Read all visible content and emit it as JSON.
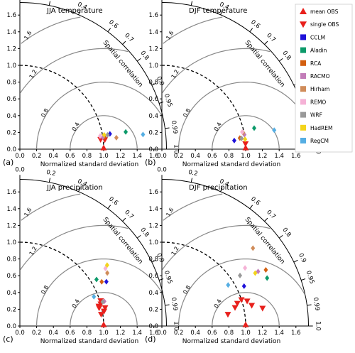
{
  "figure": {
    "x_axis_label": "Normalized standard deviation",
    "arc_label": "Spatial correlation",
    "panel_letters": [
      "(a)",
      "(b)",
      "(c)",
      "(d)"
    ]
  },
  "axes": {
    "radial_ticks": [
      "0.0",
      "0.2",
      "0.4",
      "0.6",
      "0.8",
      "1.0",
      "1.2",
      "1.4",
      "1.6"
    ],
    "correlation_ticks": [
      {
        "r": 0.0,
        "label": "0.0"
      },
      {
        "r": 0.2,
        "label": "0.2"
      },
      {
        "r": 0.4,
        "label": "0.4"
      },
      {
        "r": 0.6,
        "label": "0.6"
      },
      {
        "r": 0.7,
        "label": "0.7"
      },
      {
        "r": 0.8,
        "label": "0.8"
      },
      {
        "r": 0.9,
        "label": "0.9"
      },
      {
        "r": 0.95,
        "label": "0.95"
      },
      {
        "r": 0.99,
        "label": "0.99"
      },
      {
        "r": 1.0,
        "label": "1.0"
      }
    ],
    "rms_contours": [
      {
        "r": 0.4,
        "label": "0.4"
      },
      {
        "r": 0.8,
        "label": "0.8"
      },
      {
        "r": 1.2,
        "label": "1.2"
      },
      {
        "r": 1.6,
        "label": "1.6"
      }
    ],
    "max_sd": 1.75
  },
  "legend": [
    {
      "label": "mean OBS",
      "marker": "triangle-up",
      "color": "#e8201c"
    },
    {
      "label": "single OBS",
      "marker": "triangle-down",
      "color": "#e8201c"
    },
    {
      "label": "CCLM",
      "marker": "square",
      "color": "#1f12d9"
    },
    {
      "label": "Aladin",
      "marker": "square",
      "color": "#0c9a6a"
    },
    {
      "label": "RCA",
      "marker": "square",
      "color": "#d35f10"
    },
    {
      "label": "RACMO",
      "marker": "square",
      "color": "#c27cb8"
    },
    {
      "label": "Hirham",
      "marker": "square",
      "color": "#d08c5a"
    },
    {
      "label": "REMO",
      "marker": "square",
      "color": "#f5b2d6"
    },
    {
      "label": "WRF",
      "marker": "square",
      "color": "#999999"
    },
    {
      "label": "HadREM",
      "marker": "square",
      "color": "#f3d41b"
    },
    {
      "label": "RegCM",
      "marker": "square",
      "color": "#55aee3"
    }
  ],
  "chart_data": [
    {
      "type": "scatter",
      "subtype": "taylor-diagram",
      "title": "JJA temperature",
      "xlabel": "Normalized standard deviation",
      "mean_obs": {
        "sd": 1.0,
        "corr": 1.0
      },
      "single_obs": [
        {
          "sd": 0.97,
          "corr": 0.993
        },
        {
          "sd": 1.02,
          "corr": 0.994
        }
      ],
      "models": [
        {
          "name": "CCLM",
          "sd": 1.09,
          "corr": 0.986
        },
        {
          "name": "Aladin",
          "sd": 1.28,
          "corr": 0.987
        },
        {
          "name": "RCA",
          "sd": 1.02,
          "corr": 0.99
        },
        {
          "name": "RACMO",
          "sd": 1.0,
          "corr": 0.99
        },
        {
          "name": "Hirham",
          "sd": 1.16,
          "corr": 0.993
        },
        {
          "name": "REMO",
          "sd": 0.97,
          "corr": 0.987
        },
        {
          "name": "WRF",
          "sd": 1.06,
          "corr": 0.987
        },
        {
          "name": "HadREM",
          "sd": 1.02,
          "corr": 0.986
        },
        {
          "name": "RegCM",
          "sd": 1.48,
          "corr": 0.993
        }
      ]
    },
    {
      "type": "scatter",
      "subtype": "taylor-diagram",
      "title": "DJF temperature",
      "xlabel": "Normalized standard deviation",
      "mean_obs": {
        "sd": 1.0,
        "corr": 1.0
      },
      "single_obs": [
        {
          "sd": 1.0,
          "corr": 0.998
        }
      ],
      "models": [
        {
          "name": "CCLM",
          "sd": 0.87,
          "corr": 0.993
        },
        {
          "name": "Aladin",
          "sd": 1.13,
          "corr": 0.975
        },
        {
          "name": "RCA",
          "sd": 0.94,
          "corr": 0.99
        },
        {
          "name": "RACMO",
          "sd": 1.0,
          "corr": 0.985
        },
        {
          "name": "Hirham",
          "sd": 0.99,
          "corr": 0.98
        },
        {
          "name": "REMO",
          "sd": 0.98,
          "corr": 0.978
        },
        {
          "name": "WRF",
          "sd": 0.96,
          "corr": 0.991
        },
        {
          "name": "HadREM",
          "sd": 1.0,
          "corr": 0.993
        },
        {
          "name": "RegCM",
          "sd": 1.36,
          "corr": 0.986
        }
      ]
    },
    {
      "type": "scatter",
      "subtype": "taylor-diagram",
      "title": "JJA precipitation",
      "xlabel": "Normalized standard deviation",
      "mean_obs": {
        "sd": 1.0,
        "corr": 1.0
      },
      "single_obs": [
        {
          "sd": 0.98,
          "corr": 0.99
        },
        {
          "sd": 1.02,
          "corr": 0.985
        },
        {
          "sd": 0.97,
          "corr": 0.975
        },
        {
          "sd": 1.0,
          "corr": 0.965
        },
        {
          "sd": 1.01,
          "corr": 0.955
        },
        {
          "sd": 0.97,
          "corr": 0.97
        },
        {
          "sd": 1.04,
          "corr": 0.978
        }
      ],
      "models": [
        {
          "name": "CCLM",
          "sd": 1.16,
          "corr": 0.89
        },
        {
          "name": "Aladin",
          "sd": 1.07,
          "corr": 0.855
        },
        {
          "name": "RCA",
          "sd": 1.11,
          "corr": 0.88
        },
        {
          "name": "RACMO",
          "sd": 1.05,
          "corr": 0.96
        },
        {
          "name": "Hirham",
          "sd": 1.22,
          "corr": 0.855
        },
        {
          "name": "REMO",
          "sd": 1.23,
          "corr": 0.83
        },
        {
          "name": "WRF",
          "sd": 1.03,
          "corr": 0.96
        },
        {
          "name": "HadREM",
          "sd": 1.27,
          "corr": 0.82
        },
        {
          "name": "RegCM",
          "sd": 0.95,
          "corr": 0.93
        }
      ]
    },
    {
      "type": "scatter",
      "subtype": "taylor-diagram",
      "title": "DJF precipitation",
      "xlabel": "Normalized standard deviation",
      "mean_obs": {
        "sd": 1.0,
        "corr": 1.0
      },
      "single_obs": [
        {
          "sd": 0.8,
          "corr": 0.985
        },
        {
          "sd": 0.9,
          "corr": 0.97
        },
        {
          "sd": 0.94,
          "corr": 0.958
        },
        {
          "sd": 1.0,
          "corr": 0.95
        },
        {
          "sd": 1.06,
          "corr": 0.96
        },
        {
          "sd": 1.1,
          "corr": 0.975
        },
        {
          "sd": 1.22,
          "corr": 0.985
        }
      ],
      "models": [
        {
          "name": "CCLM",
          "sd": 1.09,
          "corr": 0.9
        },
        {
          "name": "Aladin",
          "sd": 1.38,
          "corr": 0.91
        },
        {
          "name": "RCA",
          "sd": 1.41,
          "corr": 0.88
        },
        {
          "name": "RACMO",
          "sd": 1.32,
          "corr": 0.87
        },
        {
          "name": "Hirham",
          "sd": 1.43,
          "corr": 0.76
        },
        {
          "name": "REMO",
          "sd": 1.21,
          "corr": 0.82
        },
        {
          "name": "WRF",
          "sd": 1.11,
          "corr": 0.84
        },
        {
          "name": "HadREM",
          "sd": 1.28,
          "corr": 0.87
        },
        {
          "name": "RegCM",
          "sd": 0.93,
          "corr": 0.85
        }
      ]
    }
  ]
}
